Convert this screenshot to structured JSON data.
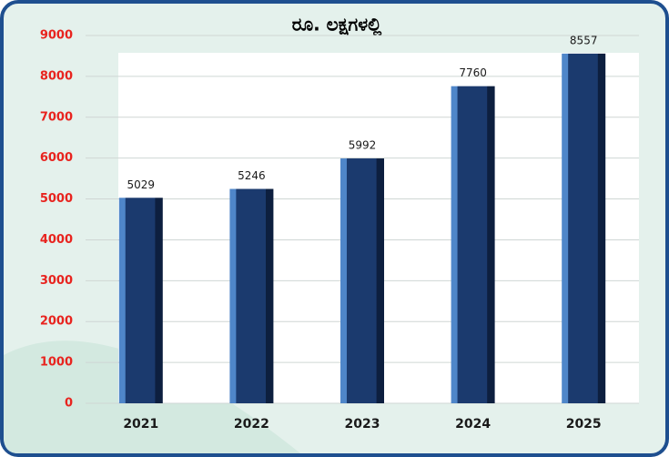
{
  "chart_data": {
    "type": "bar",
    "title": "ರೂ. ಲಕ್ಷಗಳಲ್ಲಿ",
    "categories": [
      "2021",
      "2022",
      "2023",
      "2024",
      "2025"
    ],
    "values": [
      5029,
      5246,
      5992,
      7760,
      8557
    ],
    "color": "#1b3a6e",
    "ylim": [
      0,
      9000
    ],
    "yticks": [
      0,
      1000,
      2000,
      3000,
      4000,
      5000,
      6000,
      7000,
      8000,
      9000
    ],
    "grid": true
  }
}
